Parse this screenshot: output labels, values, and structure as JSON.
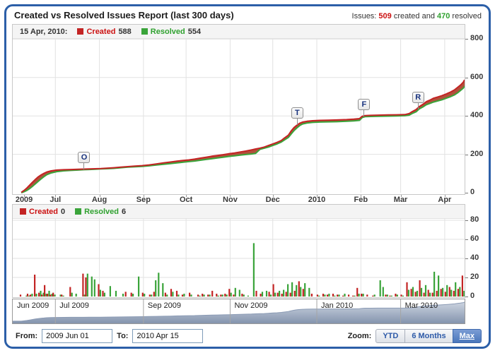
{
  "header": {
    "title": "Created vs Resolved Issues Report (last 300 days)",
    "summary": {
      "prefix": "Issues: ",
      "created": "509",
      "middle": " created and ",
      "resolved": "470",
      "suffix": " resolved"
    }
  },
  "colors": {
    "created": "#c32424",
    "created_text": "#cc1111",
    "resolved": "#3aa43a",
    "resolved_text": "#2fa12f",
    "fill_between": "#b2503c",
    "grid": "#e2e2e2",
    "nav_fill_top": "#ccd4e0",
    "nav_fill_bottom": "#8494ae",
    "nav_stroke": "#8a9ab4",
    "frame": "#2c5fa8"
  },
  "main_legend": {
    "date": "15 Apr, 2010:",
    "created_label": "Created",
    "created_value": "588",
    "resolved_label": "Resolved",
    "resolved_value": "554"
  },
  "daily_legend": {
    "created_label": "Created",
    "created_value": "0",
    "resolved_label": "Resolved",
    "resolved_value": "6"
  },
  "chart_data": [
    {
      "id": "cumulative",
      "type": "line",
      "title": "Cumulative created vs resolved issues",
      "x_unit": "days since 2009 Jun 01",
      "axis_range_days": [
        0,
        318
      ],
      "ylim": [
        0,
        820
      ],
      "yticks": [
        0,
        200,
        400,
        600,
        800
      ],
      "xticks": [
        {
          "label": "2009",
          "day": 8,
          "grid": false
        },
        {
          "label": "Jul",
          "day": 30,
          "grid": true
        },
        {
          "label": "Aug",
          "day": 61,
          "grid": true
        },
        {
          "label": "Sep",
          "day": 92,
          "grid": true
        },
        {
          "label": "Oct",
          "day": 122,
          "grid": true
        },
        {
          "label": "Nov",
          "day": 153,
          "grid": true
        },
        {
          "label": "Dec",
          "day": 183,
          "grid": true
        },
        {
          "label": "2010",
          "day": 214,
          "grid": true
        },
        {
          "label": "Feb",
          "day": 245,
          "grid": true
        },
        {
          "label": "Mar",
          "day": 273,
          "grid": true
        },
        {
          "label": "Apr",
          "day": 304,
          "grid": true
        }
      ],
      "days": [
        6,
        8,
        10,
        12,
        14,
        16,
        18,
        20,
        22,
        24,
        27,
        31,
        36,
        41,
        46,
        50,
        54,
        58,
        62,
        66,
        71,
        76,
        81,
        86,
        91,
        96,
        101,
        106,
        111,
        116,
        120,
        124,
        128,
        132,
        136,
        140,
        144,
        148,
        152,
        156,
        160,
        164,
        168,
        171,
        174,
        177,
        180,
        183,
        186,
        189,
        191,
        194,
        196,
        198,
        200,
        202,
        204,
        207,
        211,
        216,
        222,
        228,
        235,
        240,
        244,
        246,
        248,
        252,
        257,
        264,
        270,
        276,
        279,
        281,
        284,
        286,
        289,
        291,
        294,
        296,
        299,
        302,
        305,
        308,
        311,
        313,
        315,
        317,
        318
      ],
      "series": [
        {
          "name": "Created",
          "color": "#c32424",
          "values": [
            2,
            12,
            25,
            40,
            55,
            70,
            83,
            93,
            101,
            108,
            114,
            118,
            120,
            121,
            122,
            123,
            124,
            125,
            126,
            128,
            130,
            133,
            136,
            139,
            141,
            145,
            150,
            155,
            160,
            165,
            168,
            171,
            175,
            180,
            185,
            190,
            194,
            198,
            203,
            207,
            212,
            217,
            223,
            228,
            232,
            238,
            246,
            254,
            262,
            272,
            284,
            300,
            322,
            340,
            352,
            362,
            368,
            372,
            375,
            377,
            378,
            379,
            381,
            383,
            386,
            398,
            402,
            403,
            404,
            405,
            406,
            407,
            412,
            422,
            434,
            448,
            462,
            474,
            484,
            492,
            498,
            505,
            514,
            524,
            536,
            548,
            560,
            575,
            588
          ]
        },
        {
          "name": "Resolved",
          "color": "#3aa43a",
          "values": [
            0,
            5,
            12,
            22,
            34,
            47,
            60,
            72,
            84,
            94,
            103,
            110,
            114,
            116,
            118,
            120,
            121,
            122,
            124,
            125,
            127,
            130,
            133,
            135,
            137,
            140,
            144,
            148,
            152,
            156,
            159,
            162,
            165,
            169,
            173,
            177,
            181,
            185,
            189,
            192,
            196,
            199,
            202,
            205,
            226,
            232,
            238,
            246,
            254,
            264,
            274,
            288,
            306,
            324,
            338,
            350,
            358,
            363,
            366,
            368,
            369,
            370,
            372,
            374,
            377,
            392,
            396,
            397,
            398,
            399,
            400,
            401,
            404,
            412,
            422,
            436,
            448,
            458,
            466,
            472,
            478,
            484,
            492,
            500,
            510,
            520,
            532,
            544,
            554
          ]
        }
      ],
      "flags": [
        {
          "label": "O",
          "day": 50
        },
        {
          "label": "T",
          "day": 200
        },
        {
          "label": "F",
          "day": 247
        },
        {
          "label": "R",
          "day": 285
        }
      ]
    },
    {
      "id": "daily",
      "type": "bar",
      "title": "Daily created vs resolved issues",
      "ylim": [
        0,
        87
      ],
      "yticks": [
        0,
        20,
        40,
        60,
        80
      ],
      "days": [
        6,
        9,
        11,
        13,
        16,
        19,
        21,
        23,
        25,
        27,
        29,
        33,
        35,
        41,
        44,
        50,
        52,
        55,
        57,
        61,
        64,
        68,
        72,
        77,
        80,
        84,
        88,
        92,
        97,
        100,
        102,
        105,
        108,
        112,
        116,
        120,
        125,
        131,
        134,
        138,
        141,
        144,
        147,
        150,
        153,
        156,
        159,
        162,
        165,
        169,
        172,
        175,
        178,
        181,
        184,
        187,
        190,
        193,
        196,
        199,
        202,
        205,
        208,
        211,
        215,
        219,
        222,
        226,
        229,
        233,
        237,
        240,
        243,
        246,
        250,
        254,
        258,
        260,
        263,
        266,
        270,
        274,
        278,
        281,
        284,
        287,
        290,
        293,
        296,
        299,
        302,
        305,
        308,
        311,
        314,
        317,
        318
      ],
      "series": [
        {
          "name": "Created",
          "color": "#c32424",
          "values": [
            2,
            0,
            3,
            2,
            23,
            4,
            2,
            12,
            3,
            2,
            4,
            0,
            2,
            10,
            0,
            24,
            20,
            0,
            0,
            13,
            6,
            0,
            0,
            0,
            5,
            4,
            0,
            4,
            2,
            5,
            0,
            0,
            4,
            8,
            6,
            2,
            4,
            2,
            3,
            2,
            6,
            3,
            2,
            3,
            8,
            2,
            0,
            3,
            0,
            0,
            6,
            3,
            0,
            5,
            13,
            4,
            3,
            5,
            4,
            6,
            16,
            8,
            0,
            3,
            2,
            3,
            2,
            3,
            2,
            1,
            2,
            1,
            9,
            3,
            2,
            1,
            0,
            0,
            2,
            1,
            3,
            2,
            15,
            8,
            5,
            17,
            4,
            7,
            4,
            6,
            8,
            5,
            10,
            6,
            8,
            22,
            0
          ]
        },
        {
          "name": "Resolved",
          "color": "#3aa43a",
          "values": [
            0,
            1,
            1,
            3,
            3,
            6,
            4,
            3,
            6,
            3,
            2,
            2,
            1,
            4,
            3,
            2,
            24,
            21,
            18,
            7,
            4,
            11,
            6,
            3,
            0,
            3,
            21,
            3,
            2,
            17,
            25,
            14,
            2,
            5,
            2,
            3,
            2,
            1,
            2,
            2,
            0,
            1,
            2,
            2,
            4,
            9,
            7,
            2,
            1,
            56,
            0,
            5,
            6,
            2,
            4,
            6,
            7,
            13,
            15,
            12,
            10,
            14,
            9,
            0,
            1,
            2,
            3,
            1,
            2,
            3,
            0,
            1,
            3,
            3,
            0,
            2,
            17,
            10,
            2,
            1,
            2,
            1,
            7,
            10,
            6,
            9,
            12,
            4,
            26,
            22,
            9,
            12,
            7,
            15,
            10,
            6,
            6
          ]
        }
      ]
    },
    {
      "id": "navigator",
      "type": "area",
      "title": "Full range overview",
      "source_series": "Created cumulative",
      "dividers_day": [
        30,
        92,
        153,
        214,
        273
      ],
      "labels": [
        {
          "text": "Jun 2009",
          "day": 2
        },
        {
          "text": "Jul 2009",
          "day": 32
        },
        {
          "text": "Sep 2009",
          "day": 94
        },
        {
          "text": "Nov 2009",
          "day": 155
        },
        {
          "text": "Jan 2010",
          "day": 216
        },
        {
          "text": "Mar 2010",
          "day": 275
        }
      ]
    }
  ],
  "controls": {
    "from_label": "From:",
    "from_value": "2009 Jun 01",
    "to_label": "To:",
    "to_value": "2010 Apr 15",
    "zoom_label": "Zoom:",
    "zoom_buttons": [
      {
        "label": "YTD",
        "active": false
      },
      {
        "label": "6 Months",
        "active": false
      },
      {
        "label": "Max",
        "active": true
      }
    ]
  }
}
